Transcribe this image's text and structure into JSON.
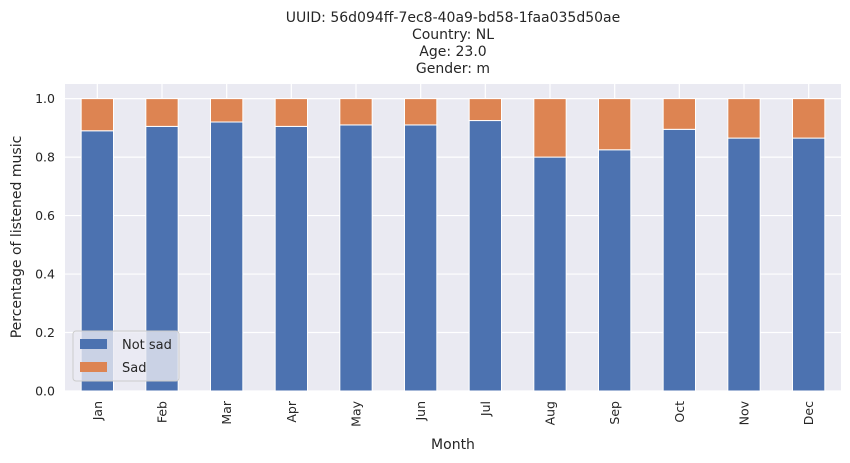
{
  "chart_data": {
    "type": "bar",
    "stacked": true,
    "title_lines": [
      "UUID: 56d094ff-7ec8-40a9-bd58-1faa035d50ae",
      "Country: NL",
      "Age: 23.0",
      "Gender: m"
    ],
    "xlabel": "Month",
    "ylabel": "Percentage of listened music",
    "ylim": [
      0,
      1.05
    ],
    "yticks": [
      "0.0",
      "0.2",
      "0.4",
      "0.6",
      "0.8",
      "1.0"
    ],
    "grid": true,
    "legend_position": "lower-left",
    "categories": [
      "Jan",
      "Feb",
      "Mar",
      "Apr",
      "May",
      "Jun",
      "Jul",
      "Aug",
      "Sep",
      "Oct",
      "Nov",
      "Dec"
    ],
    "series": [
      {
        "name": "Not sad",
        "color": "#4c72b0",
        "values": [
          0.89,
          0.905,
          0.92,
          0.905,
          0.91,
          0.91,
          0.925,
          0.8,
          0.825,
          0.895,
          0.865,
          0.865
        ]
      },
      {
        "name": "Sad",
        "color": "#dd8452",
        "values": [
          0.11,
          0.095,
          0.08,
          0.095,
          0.09,
          0.09,
          0.075,
          0.2,
          0.175,
          0.105,
          0.135,
          0.135
        ]
      }
    ],
    "plot_background": "#eaeaf2",
    "grid_color": "#ffffff"
  }
}
